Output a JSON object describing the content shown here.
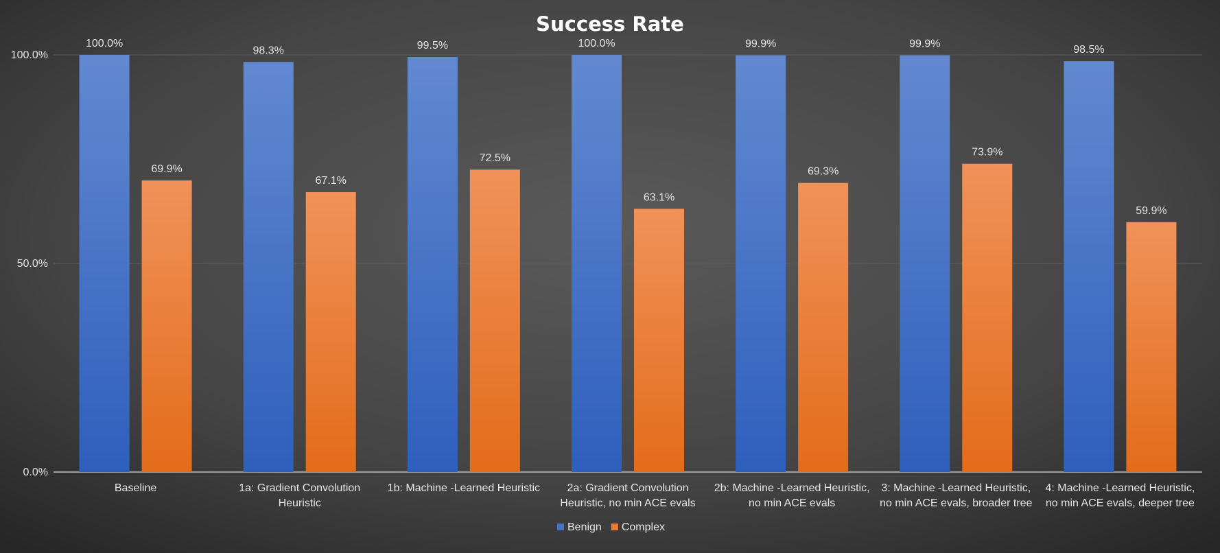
{
  "chart_data": {
    "type": "bar",
    "title": "Success Rate",
    "xlabel": "",
    "ylabel": "",
    "ylim": [
      0,
      100
    ],
    "yticks": [
      "0.0%",
      "50.0%",
      "100.0%"
    ],
    "grid": true,
    "legend_position": "bottom",
    "categories": [
      [
        "Baseline"
      ],
      [
        "1a: Gradient Convolution",
        "Heuristic"
      ],
      [
        "1b: Machine -Learned Heuristic"
      ],
      [
        "2a: Gradient Convolution",
        "Heuristic, no min ACE evals"
      ],
      [
        "2b: Machine -Learned Heuristic,",
        "no min ACE evals"
      ],
      [
        "3: Machine -Learned Heuristic,",
        "no min ACE evals, broader tree"
      ],
      [
        "4: Machine -Learned Heuristic,",
        "no min ACE evals, deeper tree"
      ]
    ],
    "series": [
      {
        "name": "Benign",
        "color": "#4472c4",
        "values": [
          100.0,
          98.3,
          99.5,
          100.0,
          99.9,
          99.9,
          98.5
        ],
        "labels": [
          "100.0%",
          "98.3%",
          "99.5%",
          "100.0%",
          "99.9%",
          "99.9%",
          "98.5%"
        ]
      },
      {
        "name": "Complex",
        "color": "#ed7d31",
        "values": [
          69.9,
          67.1,
          72.5,
          63.1,
          69.3,
          73.9,
          59.9
        ],
        "labels": [
          "69.9%",
          "67.1%",
          "72.5%",
          "63.1%",
          "69.3%",
          "73.9%",
          "59.9%"
        ]
      }
    ]
  }
}
